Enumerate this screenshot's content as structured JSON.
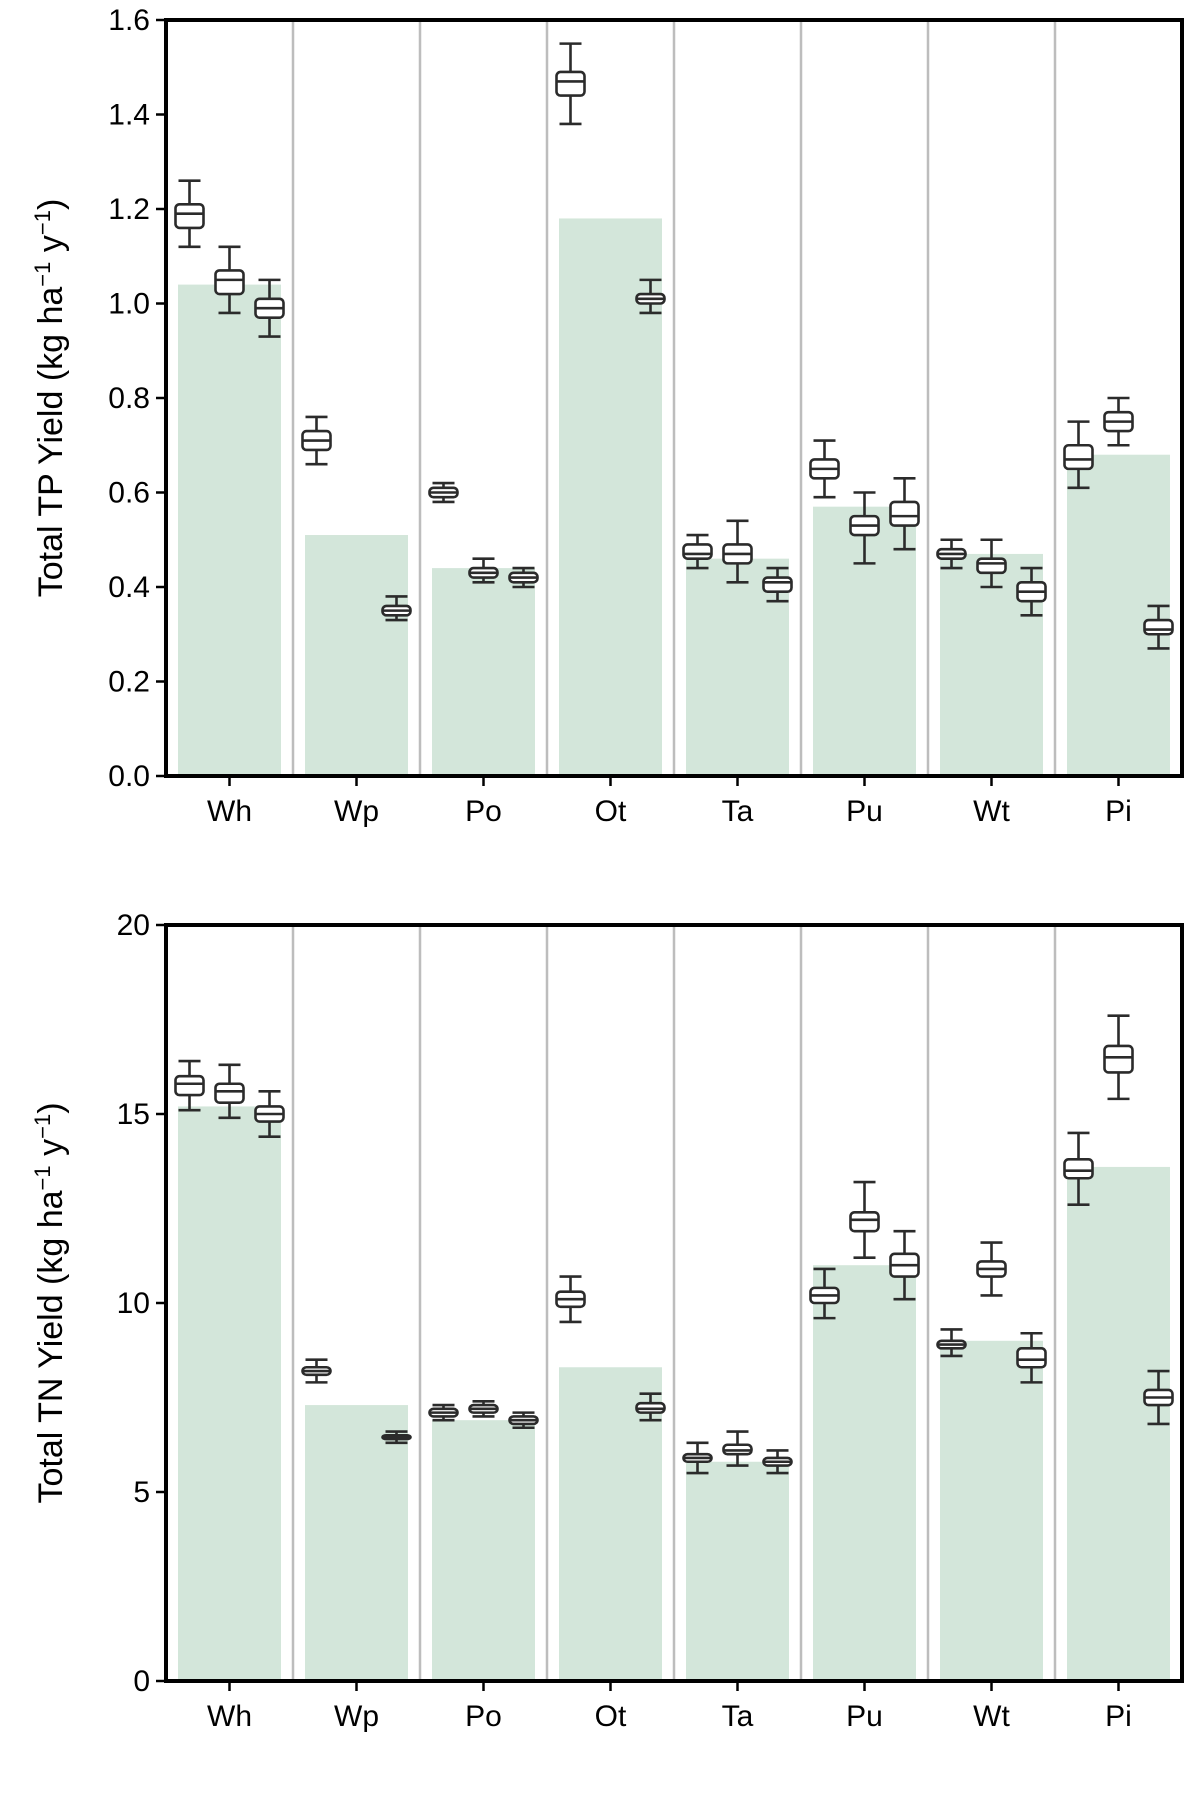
{
  "colors": {
    "bar_fill": "#d3e6da",
    "separator": "#bdbdbd",
    "axis": "#000000",
    "box_stroke": "#2b2b2b",
    "box_fill": "#ffffff"
  },
  "chart_data": [
    {
      "type": "bar",
      "ylabel": "Total TP Yield (kg ha⁻¹ y⁻¹)",
      "ylabel_text": "Total TP Yield",
      "ylabel_unit": {
        "prefix": "(kg ha",
        "exp1": "−1",
        "mid": " y",
        "exp2": "−1",
        "suffix": ")"
      },
      "ylim": [
        0,
        1.6
      ],
      "yticks": [
        0.0,
        0.2,
        0.4,
        0.6,
        0.8,
        1.0,
        1.2,
        1.4,
        1.6
      ],
      "ytick_labels": [
        "0.0",
        "0.2",
        "0.4",
        "0.6",
        "0.8",
        "1.0",
        "1.2",
        "1.4",
        "1.6"
      ],
      "categories": [
        "Wh",
        "Wp",
        "Po",
        "Ot",
        "Ta",
        "Pu",
        "Wt",
        "Pi"
      ],
      "bar_values": [
        1.04,
        0.51,
        0.44,
        1.18,
        0.46,
        0.57,
        0.47,
        0.68
      ],
      "boxes": [
        {
          "cat": 0,
          "slot": 0,
          "min": 1.12,
          "q1": 1.16,
          "med": 1.19,
          "q3": 1.21,
          "max": 1.26
        },
        {
          "cat": 0,
          "slot": 1,
          "min": 0.98,
          "q1": 1.02,
          "med": 1.05,
          "q3": 1.07,
          "max": 1.12
        },
        {
          "cat": 0,
          "slot": 2,
          "min": 0.93,
          "q1": 0.97,
          "med": 0.99,
          "q3": 1.01,
          "max": 1.05
        },
        {
          "cat": 1,
          "slot": 0,
          "min": 0.66,
          "q1": 0.69,
          "med": 0.71,
          "q3": 0.73,
          "max": 0.76
        },
        {
          "cat": 1,
          "slot": 2,
          "min": 0.33,
          "q1": 0.34,
          "med": 0.35,
          "q3": 0.36,
          "max": 0.38
        },
        {
          "cat": 2,
          "slot": 0,
          "min": 0.58,
          "q1": 0.59,
          "med": 0.6,
          "q3": 0.61,
          "max": 0.62
        },
        {
          "cat": 2,
          "slot": 1,
          "min": 0.41,
          "q1": 0.42,
          "med": 0.43,
          "q3": 0.44,
          "max": 0.46
        },
        {
          "cat": 2,
          "slot": 2,
          "min": 0.4,
          "q1": 0.41,
          "med": 0.42,
          "q3": 0.43,
          "max": 0.44
        },
        {
          "cat": 3,
          "slot": 0,
          "min": 1.38,
          "q1": 1.44,
          "med": 1.47,
          "q3": 1.49,
          "max": 1.55
        },
        {
          "cat": 3,
          "slot": 2,
          "min": 0.98,
          "q1": 1.0,
          "med": 1.01,
          "q3": 1.02,
          "max": 1.05
        },
        {
          "cat": 4,
          "slot": 0,
          "min": 0.44,
          "q1": 0.46,
          "med": 0.47,
          "q3": 0.49,
          "max": 0.51
        },
        {
          "cat": 4,
          "slot": 1,
          "min": 0.41,
          "q1": 0.45,
          "med": 0.47,
          "q3": 0.49,
          "max": 0.54
        },
        {
          "cat": 4,
          "slot": 2,
          "min": 0.37,
          "q1": 0.39,
          "med": 0.41,
          "q3": 0.42,
          "max": 0.44
        },
        {
          "cat": 5,
          "slot": 0,
          "min": 0.59,
          "q1": 0.63,
          "med": 0.65,
          "q3": 0.67,
          "max": 0.71
        },
        {
          "cat": 5,
          "slot": 1,
          "min": 0.45,
          "q1": 0.51,
          "med": 0.53,
          "q3": 0.55,
          "max": 0.6
        },
        {
          "cat": 5,
          "slot": 2,
          "min": 0.48,
          "q1": 0.53,
          "med": 0.55,
          "q3": 0.58,
          "max": 0.63
        },
        {
          "cat": 6,
          "slot": 0,
          "min": 0.44,
          "q1": 0.46,
          "med": 0.47,
          "q3": 0.48,
          "max": 0.5
        },
        {
          "cat": 6,
          "slot": 1,
          "min": 0.4,
          "q1": 0.43,
          "med": 0.45,
          "q3": 0.46,
          "max": 0.5
        },
        {
          "cat": 6,
          "slot": 2,
          "min": 0.34,
          "q1": 0.37,
          "med": 0.39,
          "q3": 0.41,
          "max": 0.44
        },
        {
          "cat": 7,
          "slot": 0,
          "min": 0.61,
          "q1": 0.65,
          "med": 0.67,
          "q3": 0.7,
          "max": 0.75
        },
        {
          "cat": 7,
          "slot": 1,
          "min": 0.7,
          "q1": 0.73,
          "med": 0.75,
          "q3": 0.77,
          "max": 0.8
        },
        {
          "cat": 7,
          "slot": 2,
          "min": 0.27,
          "q1": 0.3,
          "med": 0.31,
          "q3": 0.33,
          "max": 0.36
        }
      ]
    },
    {
      "type": "bar",
      "ylabel": "Total TN Yield (kg ha⁻¹ y⁻¹)",
      "ylabel_text": "Total TN Yield",
      "ylabel_unit": {
        "prefix": "(kg ha",
        "exp1": "−1",
        "mid": " y",
        "exp2": "−1",
        "suffix": ")"
      },
      "ylim": [
        0,
        20
      ],
      "yticks": [
        0,
        5,
        10,
        15,
        20
      ],
      "ytick_labels": [
        "0",
        "5",
        "10",
        "15",
        "20"
      ],
      "categories": [
        "Wh",
        "Wp",
        "Po",
        "Ot",
        "Ta",
        "Pu",
        "Wt",
        "Pi"
      ],
      "bar_values": [
        15.2,
        7.3,
        6.9,
        8.3,
        5.8,
        11.0,
        9.0,
        13.6
      ],
      "boxes": [
        {
          "cat": 0,
          "slot": 0,
          "min": 15.1,
          "q1": 15.5,
          "med": 15.8,
          "q3": 16.0,
          "max": 16.4
        },
        {
          "cat": 0,
          "slot": 1,
          "min": 14.9,
          "q1": 15.3,
          "med": 15.6,
          "q3": 15.8,
          "max": 16.3
        },
        {
          "cat": 0,
          "slot": 2,
          "min": 14.4,
          "q1": 14.8,
          "med": 15.0,
          "q3": 15.2,
          "max": 15.6
        },
        {
          "cat": 1,
          "slot": 0,
          "min": 7.9,
          "q1": 8.1,
          "med": 8.2,
          "q3": 8.3,
          "max": 8.5
        },
        {
          "cat": 1,
          "slot": 2,
          "min": 6.3,
          "q1": 6.4,
          "med": 6.45,
          "q3": 6.5,
          "max": 6.6
        },
        {
          "cat": 2,
          "slot": 0,
          "min": 6.9,
          "q1": 7.0,
          "med": 7.1,
          "q3": 7.2,
          "max": 7.3
        },
        {
          "cat": 2,
          "slot": 1,
          "min": 7.0,
          "q1": 7.1,
          "med": 7.2,
          "q3": 7.3,
          "max": 7.4
        },
        {
          "cat": 2,
          "slot": 2,
          "min": 6.7,
          "q1": 6.8,
          "med": 6.9,
          "q3": 7.0,
          "max": 7.1
        },
        {
          "cat": 3,
          "slot": 0,
          "min": 9.5,
          "q1": 9.9,
          "med": 10.1,
          "q3": 10.3,
          "max": 10.7
        },
        {
          "cat": 3,
          "slot": 2,
          "min": 6.9,
          "q1": 7.1,
          "med": 7.2,
          "q3": 7.35,
          "max": 7.6
        },
        {
          "cat": 4,
          "slot": 0,
          "min": 5.5,
          "q1": 5.8,
          "med": 5.9,
          "q3": 6.0,
          "max": 6.3
        },
        {
          "cat": 4,
          "slot": 1,
          "min": 5.7,
          "q1": 6.0,
          "med": 6.1,
          "q3": 6.25,
          "max": 6.6
        },
        {
          "cat": 4,
          "slot": 2,
          "min": 5.5,
          "q1": 5.7,
          "med": 5.8,
          "q3": 5.9,
          "max": 6.1
        },
        {
          "cat": 5,
          "slot": 0,
          "min": 9.6,
          "q1": 10.0,
          "med": 10.2,
          "q3": 10.4,
          "max": 10.9
        },
        {
          "cat": 5,
          "slot": 1,
          "min": 11.2,
          "q1": 11.9,
          "med": 12.2,
          "q3": 12.4,
          "max": 13.2
        },
        {
          "cat": 5,
          "slot": 2,
          "min": 10.1,
          "q1": 10.7,
          "med": 11.0,
          "q3": 11.3,
          "max": 11.9
        },
        {
          "cat": 6,
          "slot": 0,
          "min": 8.6,
          "q1": 8.8,
          "med": 8.9,
          "q3": 9.0,
          "max": 9.3
        },
        {
          "cat": 6,
          "slot": 1,
          "min": 10.2,
          "q1": 10.7,
          "med": 10.9,
          "q3": 11.1,
          "max": 11.6
        },
        {
          "cat": 6,
          "slot": 2,
          "min": 7.9,
          "q1": 8.3,
          "med": 8.5,
          "q3": 8.8,
          "max": 9.2
        },
        {
          "cat": 7,
          "slot": 0,
          "min": 12.6,
          "q1": 13.3,
          "med": 13.5,
          "q3": 13.8,
          "max": 14.5
        },
        {
          "cat": 7,
          "slot": 1,
          "min": 15.4,
          "q1": 16.1,
          "med": 16.5,
          "q3": 16.8,
          "max": 17.6
        },
        {
          "cat": 7,
          "slot": 2,
          "min": 6.8,
          "q1": 7.3,
          "med": 7.5,
          "q3": 7.7,
          "max": 8.2
        }
      ]
    }
  ]
}
